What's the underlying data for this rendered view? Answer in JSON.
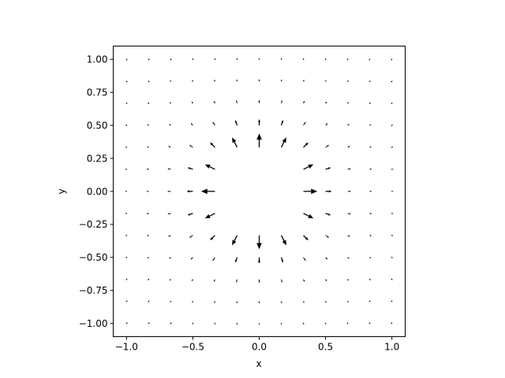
{
  "chart_data": {
    "type": "quiver",
    "title": "",
    "xlabel": "x",
    "ylabel": "y",
    "xlim": [
      -1.1,
      1.1
    ],
    "ylim": [
      -1.1,
      1.1
    ],
    "grid": false,
    "xticks": [
      -1.0,
      -0.5,
      0.0,
      0.5,
      1.0
    ],
    "xtick_labels": [
      "−1.0",
      "−0.5",
      "0.0",
      "0.5",
      "1.0"
    ],
    "yticks": [
      -1.0,
      -0.75,
      -0.5,
      -0.25,
      0.0,
      0.25,
      0.5,
      0.75,
      1.0
    ],
    "ytick_labels": [
      "−1.00",
      "−0.75",
      "−0.50",
      "−0.25",
      "0.00",
      "0.25",
      "0.50",
      "0.75",
      "1.00"
    ],
    "grid_x": [
      -1.0,
      -0.8333,
      -0.6667,
      -0.5,
      -0.3333,
      -0.1667,
      0.0,
      0.1667,
      0.3333,
      0.5,
      0.6667,
      0.8333,
      1.0
    ],
    "grid_y": [
      -1.0,
      -0.8333,
      -0.6667,
      -0.5,
      -0.3333,
      -0.1667,
      0.0,
      0.1667,
      0.3333,
      0.5,
      0.6667,
      0.8333,
      1.0
    ],
    "field": "radial: (u, v) = (x, y) / r^3",
    "color": "#000000"
  }
}
